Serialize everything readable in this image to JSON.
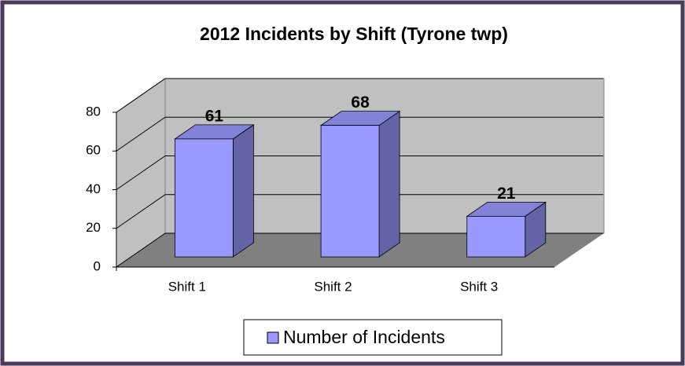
{
  "chart_data": {
    "type": "bar3d",
    "title": "2012 Incidents by Shift (Tyrone twp)",
    "categories": [
      "Shift 1",
      "Shift 2",
      "Shift 3"
    ],
    "series": [
      {
        "name": "Number of Incidents",
        "color": "#9999ff",
        "values": [
          61,
          68,
          21
        ]
      }
    ],
    "ylim": [
      0,
      80
    ],
    "yticks": [
      0,
      20,
      40,
      60,
      80
    ],
    "grid": true,
    "legend": "bottom"
  }
}
